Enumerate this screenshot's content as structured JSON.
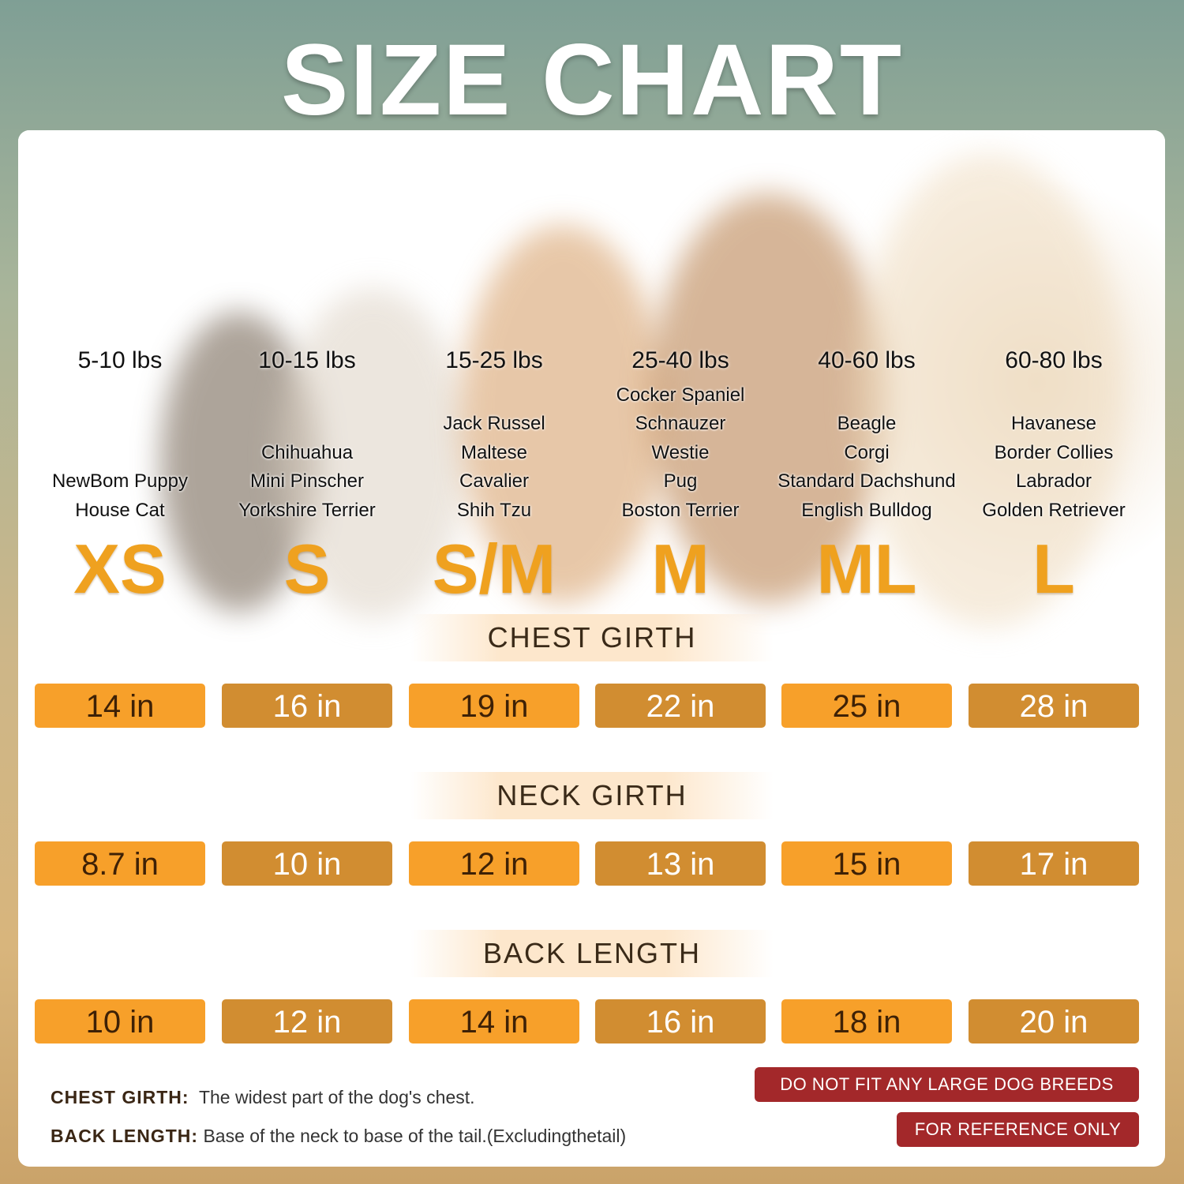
{
  "title": "SIZE CHART",
  "colors": {
    "orange": "#f7a02a",
    "dark_orange": "#d18d31",
    "size_letter": "#efa11f",
    "warning": "#a3282a"
  },
  "sizes": [
    {
      "weight": "5-10 lbs",
      "breeds": [
        "NewBom Puppy",
        "House Cat"
      ],
      "size": "XS"
    },
    {
      "weight": "10-15 lbs",
      "breeds": [
        "Chihuahua",
        "Mini Pinscher",
        "Yorkshire Terrier"
      ],
      "size": "S"
    },
    {
      "weight": "15-25 lbs",
      "breeds": [
        "Jack Russel",
        "Maltese",
        "Cavalier",
        "Shih Tzu"
      ],
      "size": "S/M"
    },
    {
      "weight": "25-40 lbs",
      "breeds": [
        "Cocker Spaniel",
        "Schnauzer",
        "Westie",
        "Pug",
        "Boston Terrier"
      ],
      "size": "M"
    },
    {
      "weight": "40-60 lbs",
      "breeds": [
        "Beagle",
        "Corgi",
        "Standard Dachshund",
        "English Bulldog"
      ],
      "size": "ML"
    },
    {
      "weight": "60-80 lbs",
      "breeds": [
        "Havanese",
        "Border Collies",
        "Labrador",
        "Golden Retriever"
      ],
      "size": "L"
    }
  ],
  "measurements": [
    {
      "label": "CHEST GIRTH",
      "values": [
        "14 in",
        "16 in",
        "19 in",
        "22 in",
        "25 in",
        "28 in"
      ]
    },
    {
      "label": "NECK GIRTH",
      "values": [
        "8.7 in",
        "10 in",
        "12 in",
        "13 in",
        "15 in",
        "17 in"
      ]
    },
    {
      "label": "BACK LENGTH",
      "values": [
        "10 in",
        "12 in",
        "14 in",
        "16 in",
        "18 in",
        "20 in"
      ]
    }
  ],
  "notes": [
    {
      "term": "CHEST GIRTH:",
      "desc": "The widest part of the dog's chest."
    },
    {
      "term": "BACK LENGTH:",
      "desc": "Base of the neck to base of the tail.(Excludingthetail)"
    }
  ],
  "warnings": [
    "DO NOT FIT ANY LARGE DOG BREEDS",
    "FOR REFERENCE ONLY"
  ]
}
